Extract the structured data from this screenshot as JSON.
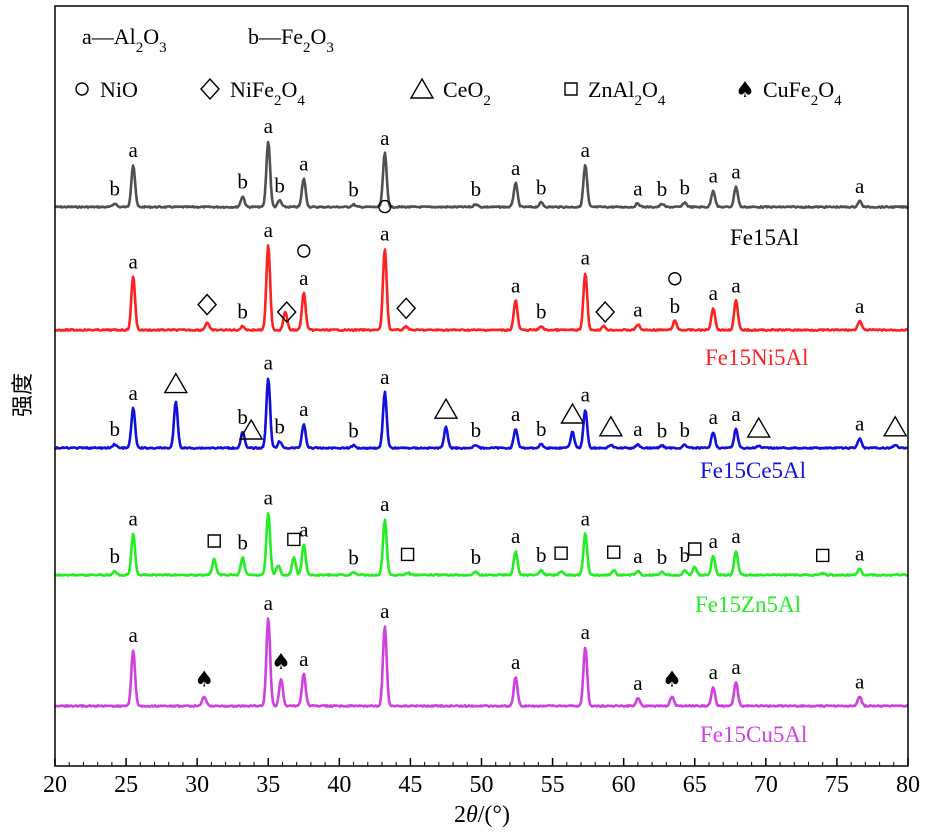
{
  "chart_data": {
    "type": "line",
    "x_axis": {
      "range": [
        20,
        80
      ],
      "ticks": [
        "20",
        "25",
        "30",
        "35",
        "40",
        "45",
        "50",
        "55",
        "60",
        "65",
        "70",
        "75",
        "80"
      ],
      "label_prefix": "2",
      "label_italic": "θ",
      "label_suffix": "/(°)"
    },
    "y_axis": {
      "label": "强度"
    },
    "legend": {
      "row1": [
        {
          "text": "a—Al",
          "sub1": "2",
          "mid": "O",
          "sub2": "3"
        },
        {
          "text": "b—Fe",
          "sub1": "2",
          "mid": "O",
          "sub2": "3"
        }
      ],
      "row2": [
        {
          "marker": "○",
          "text": "NiO"
        },
        {
          "marker": "◇",
          "text": "NiFe",
          "sub1": "2",
          "mid": "O",
          "sub2": "4"
        },
        {
          "marker": "△",
          "text": "CeO",
          "sub1": "2"
        },
        {
          "marker": "□",
          "text": "ZnAl",
          "sub1": "2",
          "mid": "O",
          "sub2": "4"
        },
        {
          "marker": "♠",
          "text": "CuFe",
          "sub1": "2",
          "mid": "O",
          "sub2": "4"
        }
      ]
    },
    "series": [
      {
        "name": "Fe15Al",
        "color": "#505050",
        "peaks": [
          [
            24.2,
            0.12
          ],
          [
            25.5,
            1.4
          ],
          [
            33.2,
            0.35
          ],
          [
            35.0,
            2.2
          ],
          [
            35.8,
            0.22
          ],
          [
            37.5,
            0.95
          ],
          [
            41.0,
            0.08
          ],
          [
            43.2,
            1.8
          ],
          [
            49.6,
            0.1
          ],
          [
            52.4,
            0.8
          ],
          [
            54.2,
            0.15
          ],
          [
            57.3,
            1.4
          ],
          [
            61.0,
            0.12
          ],
          [
            62.7,
            0.1
          ],
          [
            64.3,
            0.15
          ],
          [
            66.3,
            0.55
          ],
          [
            67.9,
            0.68
          ],
          [
            76.6,
            0.2
          ]
        ],
        "labels": [
          [
            "b",
            24.2
          ],
          [
            "a",
            25.5
          ],
          [
            "b",
            33.2
          ],
          [
            "a",
            35.0
          ],
          [
            "b",
            35.8
          ],
          [
            "a",
            37.5
          ],
          [
            "b",
            41.0
          ],
          [
            "a",
            43.2
          ],
          [
            "b",
            49.6
          ],
          [
            "a",
            52.4
          ],
          [
            "b",
            54.2
          ],
          [
            "a",
            57.3
          ],
          [
            "a",
            61.0
          ],
          [
            "b",
            62.7
          ],
          [
            "b",
            64.3
          ],
          [
            "a",
            66.3
          ],
          [
            "a",
            67.9
          ],
          [
            "a",
            76.6
          ]
        ]
      },
      {
        "name": "Fe15Ni5Al",
        "color": "#ff2020",
        "peaks": [
          [
            25.5,
            1.45
          ],
          [
            30.7,
            0.2
          ],
          [
            33.2,
            0.1
          ],
          [
            35.0,
            2.3
          ],
          [
            36.2,
            0.5
          ],
          [
            37.5,
            1.0
          ],
          [
            43.2,
            2.2
          ],
          [
            44.7,
            0.1
          ],
          [
            52.4,
            0.8
          ],
          [
            54.2,
            0.1
          ],
          [
            57.3,
            1.55
          ],
          [
            58.6,
            0.1
          ],
          [
            61.0,
            0.15
          ],
          [
            63.6,
            0.25
          ],
          [
            66.3,
            0.6
          ],
          [
            67.9,
            0.8
          ],
          [
            76.6,
            0.25
          ]
        ],
        "labels": [
          [
            "a",
            25.5
          ],
          [
            "b",
            33.2
          ],
          [
            "a",
            35.0
          ],
          [
            "a",
            37.5
          ],
          [
            "a",
            43.2
          ],
          [
            "a",
            52.4
          ],
          [
            "b",
            54.2
          ],
          [
            "a",
            57.3
          ],
          [
            "a",
            61.0
          ],
          [
            "b",
            63.6
          ],
          [
            "a",
            66.3
          ],
          [
            "a",
            67.9
          ],
          [
            "a",
            76.6
          ]
        ],
        "markers": [
          [
            "◇",
            30.7
          ],
          [
            "◇",
            36.3
          ],
          [
            "○",
            37.5
          ],
          [
            "○",
            43.2
          ],
          [
            "◇",
            44.7
          ],
          [
            "◇",
            58.7
          ],
          [
            "○",
            63.6
          ]
        ]
      },
      {
        "name": "Fe15Ce5Al",
        "color": "#1010e0",
        "peaks": [
          [
            24.2,
            0.12
          ],
          [
            25.5,
            1.25
          ],
          [
            28.5,
            1.45
          ],
          [
            33.2,
            0.5
          ],
          [
            35.0,
            2.2
          ],
          [
            35.8,
            0.2
          ],
          [
            37.5,
            0.75
          ],
          [
            41.0,
            0.08
          ],
          [
            43.2,
            1.75
          ],
          [
            47.5,
            0.65
          ],
          [
            49.6,
            0.1
          ],
          [
            52.4,
            0.6
          ],
          [
            54.2,
            0.12
          ],
          [
            56.4,
            0.5
          ],
          [
            57.3,
            1.2
          ],
          [
            59.1,
            0.1
          ],
          [
            61.0,
            0.12
          ],
          [
            62.7,
            0.08
          ],
          [
            64.3,
            0.1
          ],
          [
            66.3,
            0.5
          ],
          [
            67.9,
            0.6
          ],
          [
            69.5,
            0.06
          ],
          [
            76.6,
            0.3
          ],
          [
            79.1,
            0.1
          ]
        ],
        "labels": [
          [
            "b",
            24.2
          ],
          [
            "a",
            25.5
          ],
          [
            "b",
            33.2
          ],
          [
            "a",
            35.0
          ],
          [
            "b",
            35.8
          ],
          [
            "a",
            37.5
          ],
          [
            "b",
            41.0
          ],
          [
            "a",
            43.2
          ],
          [
            "b",
            49.6
          ],
          [
            "a",
            52.4
          ],
          [
            "b",
            54.2
          ],
          [
            "a",
            57.3
          ],
          [
            "a",
            61.0
          ],
          [
            "b",
            62.7
          ],
          [
            "b",
            64.3
          ],
          [
            "a",
            66.3
          ],
          [
            "a",
            67.9
          ],
          [
            "a",
            76.6
          ]
        ],
        "markers": [
          [
            "△",
            28.5
          ],
          [
            "△",
            33.8
          ],
          [
            "△",
            47.5
          ],
          [
            "△",
            56.4
          ],
          [
            "△",
            59.1
          ],
          [
            "△",
            69.5
          ],
          [
            "△",
            79.1
          ]
        ]
      },
      {
        "name": "Fe15Zn5Al",
        "color": "#22ee22",
        "peaks": [
          [
            24.2,
            0.12
          ],
          [
            25.5,
            1.3
          ],
          [
            31.2,
            0.5
          ],
          [
            33.2,
            0.55
          ],
          [
            35.0,
            1.95
          ],
          [
            35.7,
            0.3
          ],
          [
            36.8,
            0.55
          ],
          [
            37.5,
            0.95
          ],
          [
            41.0,
            0.08
          ],
          [
            43.2,
            1.75
          ],
          [
            44.8,
            0.08
          ],
          [
            49.6,
            0.1
          ],
          [
            52.4,
            0.75
          ],
          [
            54.2,
            0.15
          ],
          [
            55.6,
            0.12
          ],
          [
            57.3,
            1.3
          ],
          [
            59.3,
            0.15
          ],
          [
            61.0,
            0.12
          ],
          [
            62.7,
            0.1
          ],
          [
            64.3,
            0.15
          ],
          [
            65.0,
            0.25
          ],
          [
            66.3,
            0.6
          ],
          [
            67.9,
            0.75
          ],
          [
            74.0,
            0.05
          ],
          [
            76.6,
            0.2
          ]
        ],
        "labels": [
          [
            "b",
            24.2
          ],
          [
            "a",
            25.5
          ],
          [
            "b",
            33.2
          ],
          [
            "a",
            35.0
          ],
          [
            "a",
            37.5
          ],
          [
            "b",
            41.0
          ],
          [
            "a",
            43.2
          ],
          [
            "b",
            49.6
          ],
          [
            "a",
            52.4
          ],
          [
            "b",
            54.2
          ],
          [
            "a",
            57.3
          ],
          [
            "a",
            61.0
          ],
          [
            "b",
            62.7
          ],
          [
            "b",
            64.3
          ],
          [
            "a",
            66.3
          ],
          [
            "a",
            67.9
          ],
          [
            "a",
            76.6
          ]
        ],
        "markers": [
          [
            "□",
            31.2
          ],
          [
            "□",
            36.8
          ],
          [
            "□",
            44.8
          ],
          [
            "□",
            55.6
          ],
          [
            "□",
            59.3
          ],
          [
            "□",
            65.0
          ],
          [
            "□",
            74.0
          ]
        ]
      },
      {
        "name": "Fe15Cu5Al",
        "color": "#d040e0",
        "peaks": [
          [
            25.5,
            1.75
          ],
          [
            30.5,
            0.3
          ],
          [
            35.0,
            2.75
          ],
          [
            35.9,
            0.85
          ],
          [
            37.5,
            1.0
          ],
          [
            43.2,
            2.5
          ],
          [
            52.4,
            0.9
          ],
          [
            57.3,
            1.85
          ],
          [
            61.0,
            0.25
          ],
          [
            63.4,
            0.3
          ],
          [
            66.3,
            0.6
          ],
          [
            67.9,
            0.75
          ],
          [
            76.6,
            0.3
          ]
        ],
        "labels": [
          [
            "a",
            25.5
          ],
          [
            "a",
            35.0
          ],
          [
            "a",
            37.5
          ],
          [
            "a",
            43.2
          ],
          [
            "a",
            52.4
          ],
          [
            "a",
            57.3
          ],
          [
            "a",
            61.0
          ],
          [
            "a",
            66.3
          ],
          [
            "a",
            67.9
          ],
          [
            "a",
            76.6
          ]
        ],
        "markers": [
          [
            "♠",
            30.5
          ],
          [
            "♠",
            35.9
          ],
          [
            "♠",
            63.4
          ]
        ]
      }
    ]
  }
}
